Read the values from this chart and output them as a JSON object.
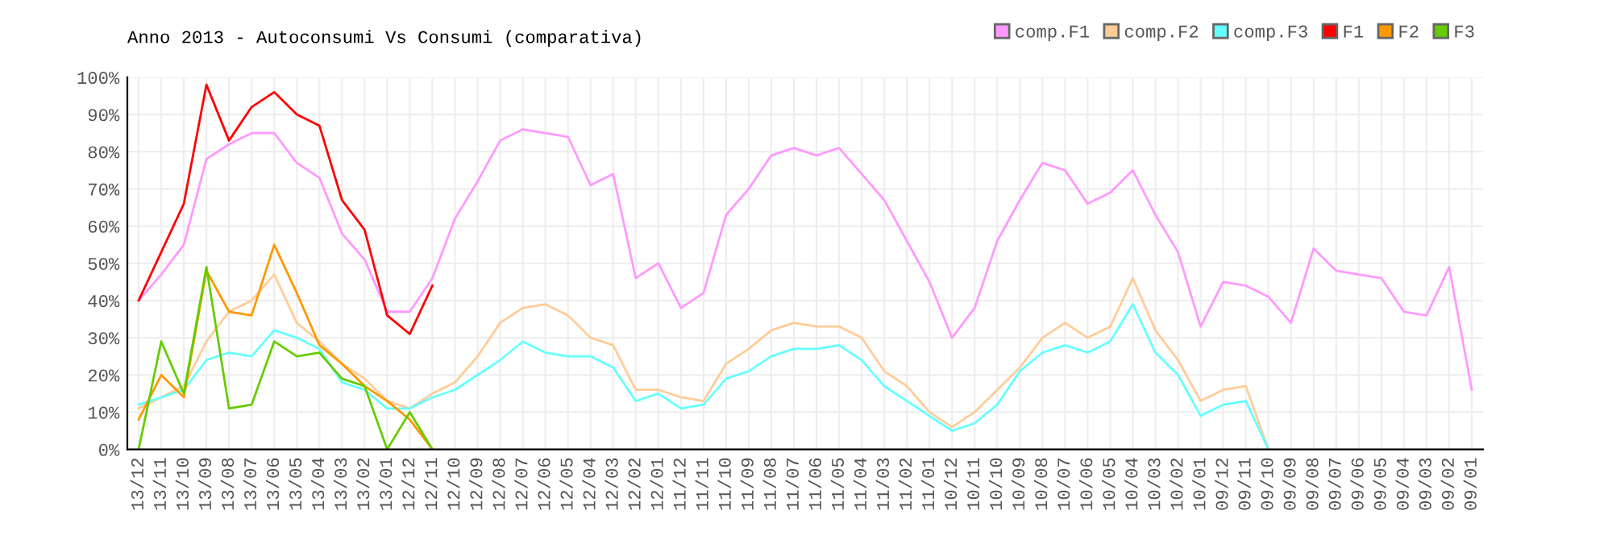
{
  "chart_data": {
    "type": "line",
    "title": "Anno 2013 - Autoconsumi Vs Consumi (comparativa)",
    "categories": [
      "13/12",
      "13/11",
      "13/10",
      "13/09",
      "13/08",
      "13/07",
      "13/06",
      "13/05",
      "13/04",
      "13/03",
      "13/02",
      "13/01",
      "12/12",
      "12/11",
      "12/10",
      "12/09",
      "12/08",
      "12/07",
      "12/06",
      "12/05",
      "12/04",
      "12/03",
      "12/02",
      "12/01",
      "11/12",
      "11/11",
      "11/10",
      "11/09",
      "11/08",
      "11/07",
      "11/06",
      "11/05",
      "11/04",
      "11/03",
      "11/02",
      "11/01",
      "10/12",
      "10/11",
      "10/10",
      "10/09",
      "10/08",
      "10/07",
      "10/06",
      "10/05",
      "10/04",
      "10/03",
      "10/02",
      "10/01",
      "09/12",
      "09/11",
      "09/10",
      "09/09",
      "09/08",
      "09/07",
      "09/06",
      "09/05",
      "09/04",
      "09/03",
      "09/02",
      "09/01"
    ],
    "series": [
      {
        "name": "comp.F1",
        "color": "#ff99ff",
        "values": [
          40,
          47,
          55,
          78,
          82,
          85,
          85,
          77,
          73,
          58,
          51,
          37,
          37,
          46,
          62,
          72,
          83,
          86,
          85,
          84,
          71,
          74,
          46,
          50,
          38,
          42,
          63,
          70,
          79,
          81,
          79,
          81,
          74,
          67,
          56,
          45,
          30,
          38,
          56,
          67,
          77,
          75,
          66,
          69,
          75,
          63,
          53,
          33,
          45,
          44,
          41,
          34,
          54,
          48,
          47,
          46,
          37,
          36,
          49,
          16
        ]
      },
      {
        "name": "comp.F2",
        "color": "#ffcc99",
        "values": [
          11,
          14,
          17,
          29,
          37,
          40,
          47,
          34,
          29,
          23,
          19,
          13,
          11,
          15,
          18,
          25,
          34,
          38,
          39,
          36,
          30,
          28,
          16,
          16,
          14,
          13,
          23,
          27,
          32,
          34,
          33,
          33,
          30,
          21,
          17,
          10,
          6,
          10,
          16,
          22,
          30,
          34,
          30,
          33,
          46,
          32,
          24,
          13,
          16,
          17,
          0,
          null,
          null,
          null,
          null,
          null,
          null,
          null,
          null,
          null
        ]
      },
      {
        "name": "comp.F3",
        "color": "#66ffff",
        "values": [
          12,
          14,
          16,
          24,
          26,
          25,
          32,
          30,
          27,
          18,
          16,
          11,
          11,
          14,
          16,
          20,
          24,
          29,
          26,
          25,
          25,
          22,
          13,
          15,
          11,
          12,
          19,
          21,
          25,
          27,
          27,
          28,
          24,
          17,
          13,
          9,
          5,
          7,
          12,
          21,
          26,
          28,
          26,
          29,
          39,
          26,
          20,
          9,
          12,
          13,
          0,
          null,
          null,
          null,
          null,
          null,
          null,
          null,
          null,
          null
        ]
      },
      {
        "name": "F1",
        "color": "#ff0000",
        "values": [
          40,
          53,
          66,
          98,
          83,
          92,
          96,
          90,
          87,
          67,
          59,
          36,
          31,
          44,
          null,
          null,
          null,
          null,
          null,
          null,
          null,
          null,
          null,
          null,
          null,
          null,
          null,
          null,
          null,
          null,
          null,
          null,
          null,
          null,
          null,
          null,
          null,
          null,
          null,
          null,
          null,
          null,
          null,
          null,
          null,
          null,
          null,
          null,
          null,
          null,
          null,
          null,
          null,
          null,
          null,
          null,
          null,
          null,
          null,
          null
        ]
      },
      {
        "name": "F2",
        "color": "#ff9900",
        "values": [
          8,
          20,
          14,
          48,
          37,
          36,
          55,
          42,
          28,
          23,
          17,
          13,
          8,
          0,
          null,
          null,
          null,
          null,
          null,
          null,
          null,
          null,
          null,
          null,
          null,
          null,
          null,
          null,
          null,
          null,
          null,
          null,
          null,
          null,
          null,
          null,
          null,
          null,
          null,
          null,
          null,
          null,
          null,
          null,
          null,
          null,
          null,
          null,
          null,
          null,
          null,
          null,
          null,
          null,
          null,
          null,
          null,
          null,
          null,
          null
        ]
      },
      {
        "name": "F3",
        "color": "#66cc00",
        "values": [
          0,
          29,
          15,
          49,
          11,
          12,
          29,
          25,
          26,
          19,
          17,
          0,
          10,
          0,
          null,
          null,
          null,
          null,
          null,
          null,
          null,
          null,
          null,
          null,
          null,
          null,
          null,
          null,
          null,
          null,
          null,
          null,
          null,
          null,
          null,
          null,
          null,
          null,
          null,
          null,
          null,
          null,
          null,
          null,
          null,
          null,
          null,
          null,
          null,
          null,
          null,
          null,
          null,
          null,
          null,
          null,
          null,
          null,
          null,
          null
        ]
      }
    ],
    "ylim": [
      0,
      100
    ],
    "yticks": [
      {
        "value": 0,
        "label": "0%"
      },
      {
        "value": 10,
        "label": "10%"
      },
      {
        "value": 20,
        "label": "20%"
      },
      {
        "value": 30,
        "label": "30%"
      },
      {
        "value": 40,
        "label": "40%"
      },
      {
        "value": 50,
        "label": "50%"
      },
      {
        "value": 60,
        "label": "60%"
      },
      {
        "value": 70,
        "label": "70%"
      },
      {
        "value": 80,
        "label": "80%"
      },
      {
        "value": 90,
        "label": "90%"
      },
      {
        "value": 100,
        "label": "100%"
      }
    ],
    "grid": true,
    "legend": "top right",
    "marker": "none",
    "line_style": "solid"
  }
}
